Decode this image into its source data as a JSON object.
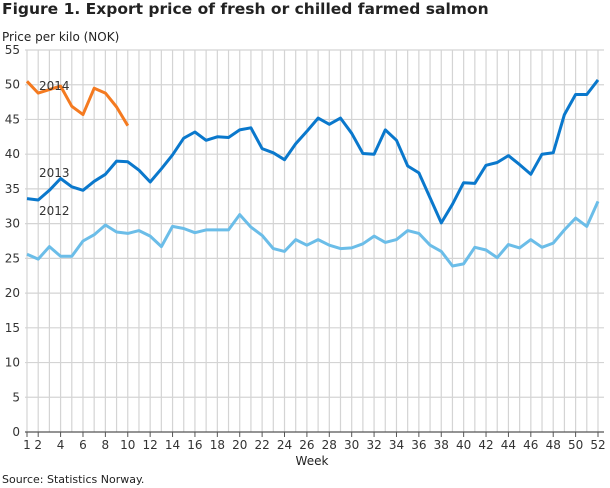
{
  "chart_data": {
    "type": "line",
    "title": "Figure 1. Export price of fresh or chilled farmed salmon",
    "ylabel": "Price per kilo (NOK)",
    "xlabel": "Week",
    "source": "Source: Statistics Norway.",
    "xlim": [
      1,
      52
    ],
    "ylim": [
      0,
      55
    ],
    "yticks": [
      0,
      5,
      10,
      15,
      20,
      25,
      30,
      35,
      40,
      45,
      50,
      55
    ],
    "xticks": [
      1,
      2,
      4,
      6,
      8,
      10,
      12,
      14,
      16,
      18,
      20,
      22,
      24,
      26,
      28,
      30,
      32,
      34,
      36,
      38,
      40,
      42,
      44,
      46,
      48,
      50,
      52
    ],
    "grid": true,
    "legend": "inline labels",
    "series": [
      {
        "name": "2014",
        "color": "#f47a20",
        "values": [
          50.5,
          48.8,
          49.3,
          49.8,
          46.9,
          45.7,
          49.5,
          48.8,
          46.8,
          44.1
        ]
      },
      {
        "name": "2013",
        "color": "#0a78cc",
        "values": [
          33.6,
          33.4,
          34.8,
          36.5,
          35.3,
          34.8,
          36.1,
          37.1,
          39.0,
          38.9,
          37.7,
          36.0,
          37.9,
          39.9,
          42.3,
          43.2,
          42.0,
          42.5,
          42.4,
          43.5,
          43.8,
          40.8,
          40.2,
          39.2,
          41.5,
          43.3,
          45.2,
          44.3,
          45.2,
          43.0,
          40.1,
          40.0,
          43.5,
          42.0,
          38.3,
          37.3,
          33.7,
          30.1,
          32.8,
          35.9,
          35.8,
          38.4,
          38.8,
          39.8,
          38.5,
          37.1,
          40.0,
          40.2,
          45.7,
          48.6,
          48.6,
          50.7
        ]
      },
      {
        "name": "2012",
        "color": "#6bbde8",
        "values": [
          25.6,
          24.9,
          26.7,
          25.3,
          25.3,
          27.5,
          28.4,
          29.8,
          28.8,
          28.6,
          29.0,
          28.2,
          26.7,
          29.6,
          29.3,
          28.7,
          29.1,
          29.1,
          29.1,
          31.3,
          29.5,
          28.3,
          26.4,
          26.0,
          27.7,
          26.9,
          27.7,
          26.9,
          26.4,
          26.5,
          27.1,
          28.2,
          27.3,
          27.7,
          29.0,
          28.6,
          26.9,
          26.0,
          23.9,
          24.2,
          26.6,
          26.2,
          25.1,
          27.0,
          26.5,
          27.7,
          26.6,
          27.2,
          29.1,
          30.8,
          29.6,
          33.2
        ]
      }
    ]
  }
}
